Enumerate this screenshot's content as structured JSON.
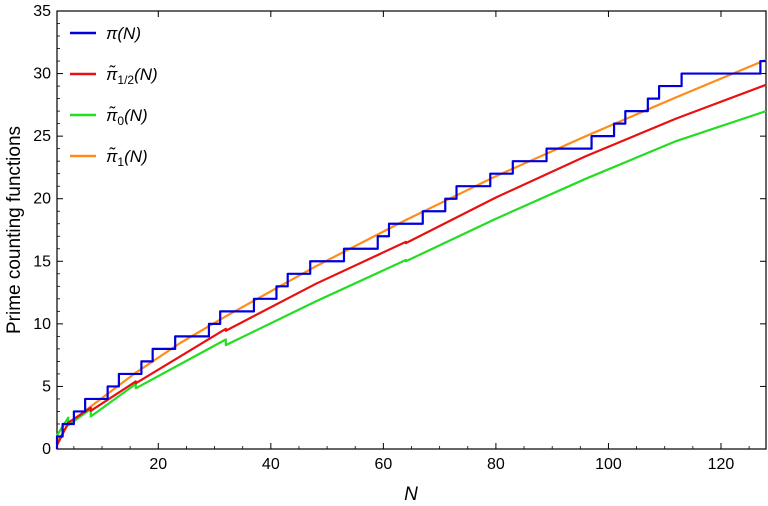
{
  "chart_data": {
    "type": "line",
    "xlabel": "N",
    "ylabel": "Prime counting functions",
    "xlim": [
      2,
      128
    ],
    "ylim": [
      0,
      35
    ],
    "x_ticks": [
      20,
      40,
      60,
      80,
      100,
      120
    ],
    "y_ticks": [
      0,
      5,
      10,
      15,
      20,
      25,
      30,
      35
    ],
    "grid": false,
    "legend_position": "top-left",
    "primes": [
      2,
      3,
      5,
      7,
      11,
      13,
      17,
      19,
      23,
      29,
      31,
      37,
      41,
      43,
      47,
      53,
      59,
      61,
      67,
      71,
      73,
      79,
      83,
      89,
      97,
      101,
      103,
      107,
      109,
      113,
      127
    ],
    "series": [
      {
        "name": "π(N)",
        "name_base": "π",
        "name_sub": "",
        "name_arg": "(N)",
        "color": "#0000dd",
        "style": "step",
        "x": [
          2,
          3,
          5,
          7,
          11,
          13,
          17,
          19,
          23,
          29,
          31,
          37,
          41,
          43,
          47,
          53,
          59,
          61,
          67,
          71,
          73,
          79,
          83,
          89,
          97,
          101,
          103,
          107,
          109,
          113,
          127
        ],
        "y": [
          1,
          2,
          3,
          4,
          5,
          6,
          7,
          8,
          9,
          10,
          11,
          12,
          13,
          14,
          15,
          16,
          17,
          18,
          19,
          20,
          21,
          22,
          23,
          24,
          25,
          26,
          27,
          28,
          29,
          30,
          31
        ]
      },
      {
        "name": "π̃1/2(N)",
        "name_base": "π̃",
        "name_sub": "1/2",
        "name_arg": "(N)",
        "color": "#e81010",
        "style": "line",
        "x": [
          2,
          4,
          8,
          8,
          16,
          16,
          32,
          32,
          48,
          64,
          64,
          80,
          96,
          112,
          128
        ],
        "y": [
          0.3,
          2.1,
          3.3,
          3.05,
          5.4,
          5.25,
          9.6,
          9.45,
          13.2,
          16.55,
          16.45,
          20.1,
          23.4,
          26.4,
          29.1
        ]
      },
      {
        "name": "π̃0(N)",
        "name_base": "π̃",
        "name_sub": "0",
        "name_arg": "(N)",
        "color": "#22dd22",
        "style": "line",
        "x": [
          2,
          4,
          4,
          8,
          8,
          16,
          16,
          32,
          32,
          48,
          64,
          64,
          80,
          96,
          112,
          128
        ],
        "y": [
          1.1,
          2.5,
          1.9,
          3.2,
          2.6,
          5.2,
          4.85,
          8.75,
          8.3,
          11.8,
          15.1,
          15.0,
          18.4,
          21.6,
          24.6,
          27.0
        ]
      },
      {
        "name": "π̃1(N)",
        "name_base": "π̃",
        "name_sub": "1",
        "name_arg": "(N)",
        "color": "#ff8c1a",
        "style": "line",
        "x": [
          2,
          4,
          8,
          16,
          24,
          32,
          48,
          64,
          80,
          96,
          112,
          128
        ],
        "y": [
          0.5,
          2.0,
          3.4,
          6.1,
          8.5,
          10.6,
          14.6,
          18.3,
          21.8,
          25.0,
          28.1,
          31.1
        ]
      }
    ]
  }
}
